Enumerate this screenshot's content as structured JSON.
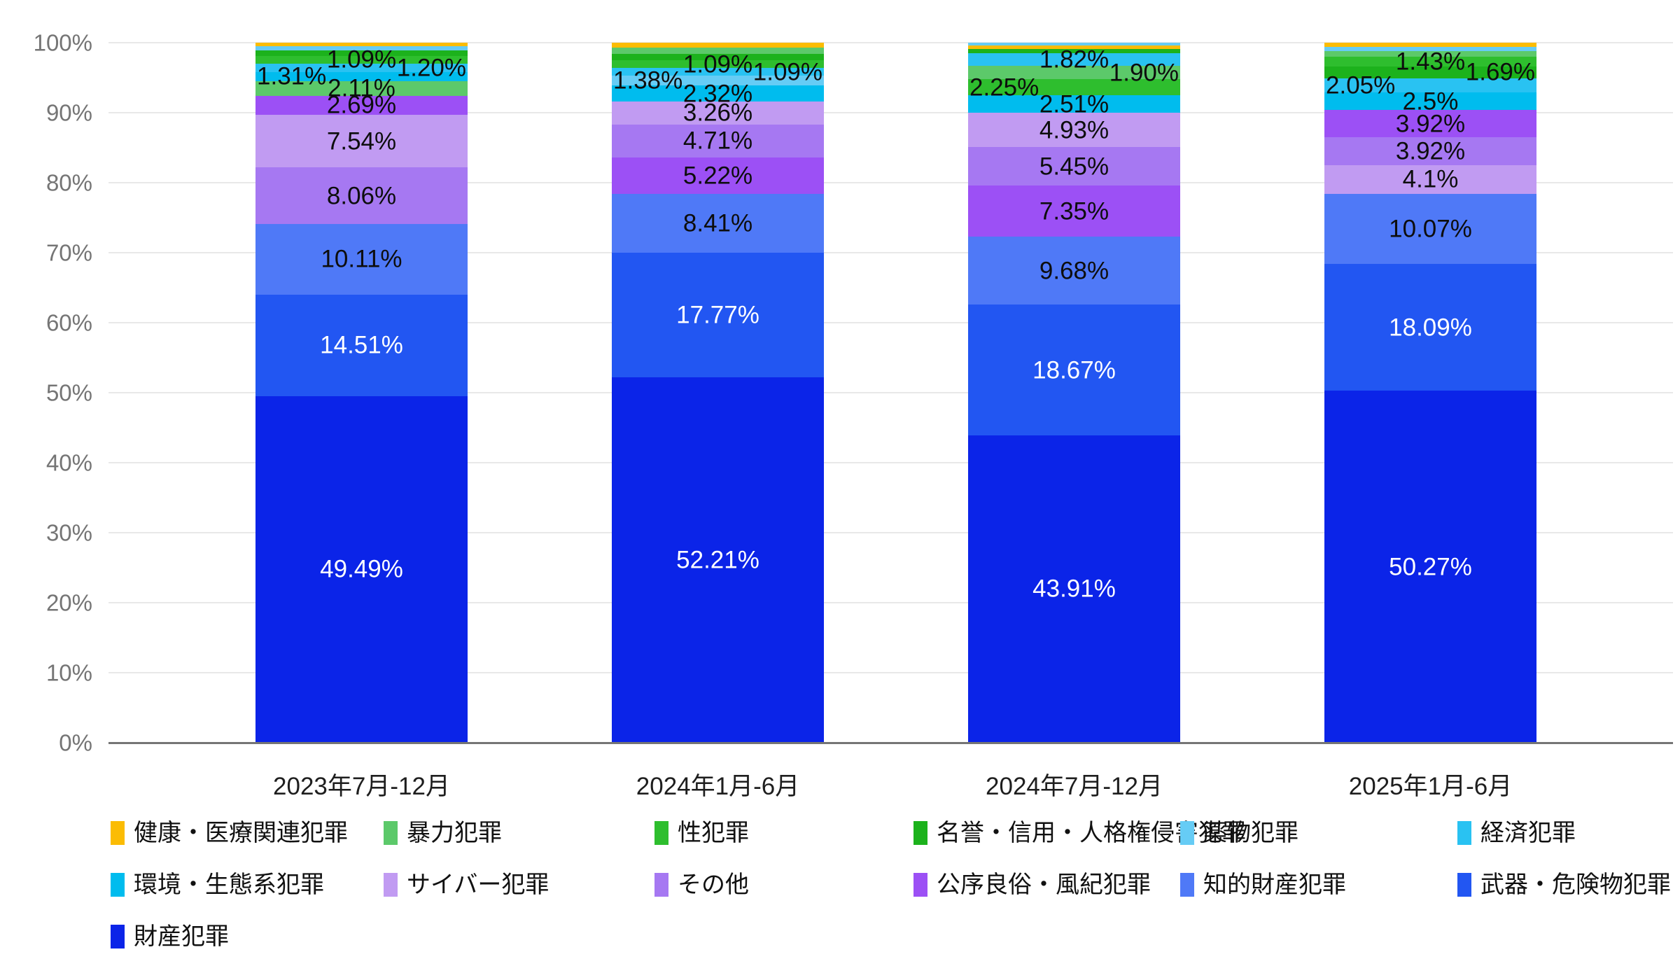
{
  "chart_data": {
    "type": "bar",
    "variant": "stacked-100-percent",
    "title": "",
    "xlabel": "",
    "ylabel": "",
    "grid": true,
    "legend_position": "bottom",
    "y_axis": {
      "min": 0,
      "max": 100,
      "step": 10,
      "tick_labels": [
        "0%",
        "10%",
        "20%",
        "30%",
        "40%",
        "50%",
        "60%",
        "70%",
        "80%",
        "90%",
        "100%"
      ]
    },
    "categories": [
      "2023年7月-12月",
      "2024年1月-6月",
      "2024年7月-12月",
      "2025年1月-6月"
    ],
    "series": [
      {
        "name": "健康・医療関連犯罪",
        "color": "#FBBC04",
        "values": [
          0.45,
          0.72,
          0.5,
          0.55
        ]
      },
      {
        "name": "暴力犯罪",
        "color": "#5CC96A",
        "values": [
          2.11,
          0.87,
          1.9,
          0.76
        ]
      },
      {
        "name": "性犯罪",
        "color": "#2EBE2E",
        "values": [
          1.09,
          1.09,
          2.25,
          1.43
        ]
      },
      {
        "name": "名誉・信用・人格権侵害犯罪",
        "color": "#1CB21C",
        "values": [
          0.77,
          0.95,
          0.61,
          1.69
        ]
      },
      {
        "name": "薬物犯罪",
        "color": "#66CCF5",
        "values": [
          0.67,
          1.38,
          0.42,
          0.65
        ]
      },
      {
        "name": "経済犯罪",
        "color": "#29C2F2",
        "values": [
          1.2,
          1.09,
          1.82,
          2.05
        ]
      },
      {
        "name": "環境・生態系犯罪",
        "color": "#00BCEE",
        "values": [
          1.31,
          2.32,
          2.51,
          2.5
        ]
      },
      {
        "name": "サイバー犯罪",
        "color": "#C19BF2",
        "values": [
          7.54,
          3.26,
          4.93,
          4.1
        ]
      },
      {
        "name": "その他",
        "color": "#A678F2",
        "values": [
          8.06,
          4.71,
          5.45,
          3.92
        ]
      },
      {
        "name": "公序良俗・風紀犯罪",
        "color": "#9C50F5",
        "values": [
          2.69,
          5.22,
          7.35,
          3.92
        ]
      },
      {
        "name": "知的財産犯罪",
        "color": "#4F79F7",
        "values": [
          10.11,
          8.41,
          9.68,
          10.07
        ]
      },
      {
        "name": "武器・危険物犯罪",
        "color": "#2256F2",
        "values": [
          14.51,
          17.77,
          18.67,
          18.09
        ]
      },
      {
        "name": "財産犯罪",
        "color": "#0B24E8",
        "values": [
          49.49,
          52.21,
          43.91,
          50.27
        ]
      }
    ],
    "bars": [
      {
        "category": "2023年7月-12月",
        "segments": [
          {
            "series": "健康・医療関連犯罪",
            "value": 0.45
          },
          {
            "series": "薬物犯罪",
            "value": 0.67
          },
          {
            "series": "名誉・信用・人格権侵害犯罪",
            "value": 0.77
          },
          {
            "series": "性犯罪",
            "value": 1.09,
            "label": "1.09%",
            "align": "center"
          },
          {
            "series": "経済犯罪",
            "value": 1.2,
            "label": "1.20%",
            "align": "right"
          },
          {
            "series": "環境・生態系犯罪",
            "value": 1.31,
            "label": "1.31%",
            "align": "left"
          },
          {
            "series": "暴力犯罪",
            "value": 2.11,
            "label": "2.11%",
            "align": "center"
          },
          {
            "series": "公序良俗・風紀犯罪",
            "value": 2.69,
            "label": "2.69%",
            "align": "center"
          },
          {
            "series": "サイバー犯罪",
            "value": 7.54,
            "label": "7.54%",
            "align": "center"
          },
          {
            "series": "その他",
            "value": 8.06,
            "label": "8.06%",
            "align": "center"
          },
          {
            "series": "知的財産犯罪",
            "value": 10.11,
            "label": "10.11%",
            "align": "center"
          },
          {
            "series": "武器・危険物犯罪",
            "value": 14.51,
            "label": "14.51%",
            "align": "center",
            "labelColor": "light"
          },
          {
            "series": "財産犯罪",
            "value": 49.49,
            "label": "49.49%",
            "align": "center",
            "labelColor": "light"
          }
        ]
      },
      {
        "category": "2024年1月-6月",
        "segments": [
          {
            "series": "健康・医療関連犯罪",
            "value": 0.72
          },
          {
            "series": "暴力犯罪",
            "value": 0.87
          },
          {
            "series": "名誉・信用・人格権侵害犯罪",
            "value": 0.95
          },
          {
            "series": "性犯罪",
            "value": 1.09,
            "label": "1.09%",
            "align": "center"
          },
          {
            "series": "経済犯罪",
            "value": 1.09,
            "label": "1.09%",
            "align": "right"
          },
          {
            "series": "薬物犯罪",
            "value": 1.38,
            "label": "1.38%",
            "align": "left"
          },
          {
            "series": "環境・生態系犯罪",
            "value": 2.32,
            "label": "2.32%",
            "align": "center"
          },
          {
            "series": "サイバー犯罪",
            "value": 3.26,
            "label": "3.26%",
            "align": "center"
          },
          {
            "series": "その他",
            "value": 4.71,
            "label": "4.71%",
            "align": "center"
          },
          {
            "series": "公序良俗・風紀犯罪",
            "value": 5.22,
            "label": "5.22%",
            "align": "center"
          },
          {
            "series": "知的財産犯罪",
            "value": 8.41,
            "label": "8.41%",
            "align": "center"
          },
          {
            "series": "武器・危険物犯罪",
            "value": 17.77,
            "label": "17.77%",
            "align": "center",
            "labelColor": "light"
          },
          {
            "series": "財産犯罪",
            "value": 52.21,
            "label": "52.21%",
            "align": "center",
            "labelColor": "light"
          }
        ]
      },
      {
        "category": "2024年7月-12月",
        "segments": [
          {
            "series": "薬物犯罪",
            "value": 0.42
          },
          {
            "series": "健康・医療関連犯罪",
            "value": 0.5
          },
          {
            "series": "名誉・信用・人格権侵害犯罪",
            "value": 0.61
          },
          {
            "series": "経済犯罪",
            "value": 1.82,
            "label": "1.82%",
            "align": "center"
          },
          {
            "series": "暴力犯罪",
            "value": 1.9,
            "label": "1.90%",
            "align": "right"
          },
          {
            "series": "性犯罪",
            "value": 2.25,
            "label": "2.25%",
            "align": "left"
          },
          {
            "series": "環境・生態系犯罪",
            "value": 2.51,
            "label": "2.51%",
            "align": "center"
          },
          {
            "series": "サイバー犯罪",
            "value": 4.93,
            "label": "4.93%",
            "align": "center"
          },
          {
            "series": "その他",
            "value": 5.45,
            "label": "5.45%",
            "align": "center"
          },
          {
            "series": "公序良俗・風紀犯罪",
            "value": 7.35,
            "label": "7.35%",
            "align": "center"
          },
          {
            "series": "知的財産犯罪",
            "value": 9.68,
            "label": "9.68%",
            "align": "center"
          },
          {
            "series": "武器・危険物犯罪",
            "value": 18.67,
            "label": "18.67%",
            "align": "center",
            "labelColor": "light"
          },
          {
            "series": "財産犯罪",
            "value": 43.91,
            "label": "43.91%",
            "align": "center",
            "labelColor": "light"
          }
        ]
      },
      {
        "category": "2025年1月-6月",
        "segments": [
          {
            "series": "健康・医療関連犯罪",
            "value": 0.55
          },
          {
            "series": "薬物犯罪",
            "value": 0.65
          },
          {
            "series": "暴力犯罪",
            "value": 0.76
          },
          {
            "series": "性犯罪",
            "value": 1.43,
            "label": "1.43%",
            "align": "center"
          },
          {
            "series": "名誉・信用・人格権侵害犯罪",
            "value": 1.69,
            "label": "1.69%",
            "align": "right"
          },
          {
            "series": "経済犯罪",
            "value": 2.05,
            "label": "2.05%",
            "align": "left"
          },
          {
            "series": "環境・生態系犯罪",
            "value": 2.5,
            "label": "2.5%",
            "align": "center"
          },
          {
            "series": "公序良俗・風紀犯罪",
            "value": 3.92,
            "label": "3.92%",
            "align": "center"
          },
          {
            "series": "その他",
            "value": 3.92,
            "label": "3.92%",
            "align": "center"
          },
          {
            "series": "サイバー犯罪",
            "value": 4.1,
            "label": "4.1%",
            "align": "center"
          },
          {
            "series": "知的財産犯罪",
            "value": 10.07,
            "label": "10.07%",
            "align": "center"
          },
          {
            "series": "武器・危険物犯罪",
            "value": 18.09,
            "label": "18.09%",
            "align": "center",
            "labelColor": "light"
          },
          {
            "series": "財産犯罪",
            "value": 50.27,
            "label": "50.27%",
            "align": "center",
            "labelColor": "light"
          }
        ]
      }
    ],
    "legend_rows": [
      [
        "健康・医療関連犯罪",
        "暴力犯罪",
        "性犯罪",
        "名誉・信用・人格権侵害犯罪",
        "薬物犯罪",
        "経済犯罪"
      ],
      [
        "環境・生態系犯罪",
        "サイバー犯罪",
        "その他",
        "公序良俗・風紀犯罪",
        "知的財産犯罪",
        "武器・危険物犯罪"
      ],
      [
        "財産犯罪"
      ]
    ],
    "colors": {
      "grid": "#e8e8e8",
      "axis_line": "#757575",
      "tick_text": "#757575",
      "category_text": "#1e1e1e",
      "label_dark": "#0d0d0d",
      "label_light": "#ffffff"
    }
  }
}
